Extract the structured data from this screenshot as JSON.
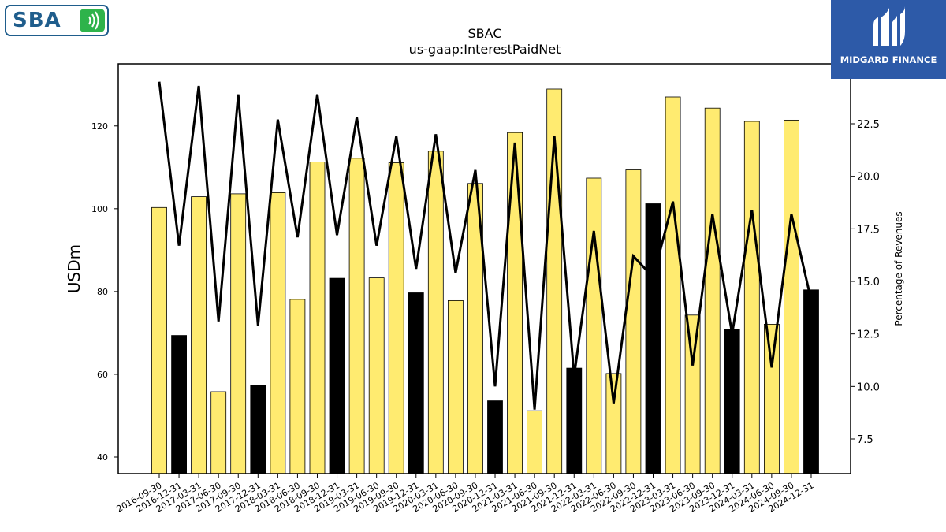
{
  "logos": {
    "left_text": "SBA",
    "right_text": "MIDGARD FINANCE"
  },
  "colors": {
    "bar_yellow": "#ffeb70",
    "bar_black": "#000000",
    "line": "#000000",
    "brand_blue": "#2d5aa8",
    "sba_blue": "#1f5d8c",
    "sba_green": "#2eb34b"
  },
  "chart_data": {
    "type": "bar",
    "title": "SBAC",
    "subtitle": "us-gaap:InterestPaidNet",
    "ylabel": "USDm",
    "y2label": "Percentage of Revenues",
    "ylim": [
      36,
      135
    ],
    "y2lim": [
      5.85,
      25.35
    ],
    "yticks": [
      40,
      60,
      80,
      100,
      120
    ],
    "y2ticks": [
      7.5,
      10.0,
      12.5,
      15.0,
      17.5,
      20.0,
      22.5
    ],
    "categories": [
      "2016-09-30",
      "2016-12-31",
      "2017-03-31",
      "2017-06-30",
      "2017-09-30",
      "2017-12-31",
      "2018-03-31",
      "2018-06-30",
      "2018-09-30",
      "2018-12-31",
      "2019-03-31",
      "2019-06-30",
      "2019-09-30",
      "2019-12-31",
      "2020-03-31",
      "2020-06-30",
      "2020-09-30",
      "2020-12-31",
      "2021-03-31",
      "2021-06-30",
      "2021-09-30",
      "2021-12-31",
      "2022-03-31",
      "2022-06-30",
      "2022-09-30",
      "2022-12-31",
      "2023-03-31",
      "2023-06-30",
      "2023-09-30",
      "2023-12-31",
      "2024-03-31",
      "2024-06-30",
      "2024-09-30",
      "2024-12-31"
    ],
    "series": [
      {
        "kind": "bar",
        "values": [
          100.3,
          69.4,
          102.9,
          55.8,
          103.6,
          57.3,
          103.9,
          78.1,
          111.3,
          83.2,
          112.2,
          83.3,
          111.1,
          79.7,
          113.9,
          77.8,
          106.1,
          53.6,
          118.4,
          51.2,
          128.9,
          61.5,
          107.4,
          60.2,
          109.4,
          101.2,
          127.0,
          74.3,
          124.3,
          70.8,
          121.1,
          72.1,
          121.4,
          80.4
        ],
        "colors": [
          "#ffeb70",
          "#000000",
          "#ffeb70",
          "#ffeb70",
          "#ffeb70",
          "#000000",
          "#ffeb70",
          "#ffeb70",
          "#ffeb70",
          "#000000",
          "#ffeb70",
          "#ffeb70",
          "#ffeb70",
          "#000000",
          "#ffeb70",
          "#ffeb70",
          "#ffeb70",
          "#000000",
          "#ffeb70",
          "#ffeb70",
          "#ffeb70",
          "#000000",
          "#ffeb70",
          "#ffeb70",
          "#ffeb70",
          "#000000",
          "#ffeb70",
          "#ffeb70",
          "#ffeb70",
          "#000000",
          "#ffeb70",
          "#ffeb70",
          "#ffeb70",
          "#000000"
        ]
      },
      {
        "kind": "line",
        "axis": "right",
        "values": [
          24.5,
          16.7,
          24.3,
          13.1,
          23.9,
          12.9,
          22.7,
          17.1,
          23.9,
          17.2,
          22.8,
          16.7,
          21.9,
          15.6,
          22.0,
          15.4,
          20.3,
          10.0,
          21.6,
          8.9,
          21.9,
          10.5,
          17.4,
          9.2,
          16.2,
          15.2,
          18.8,
          11.0,
          18.2,
          12.5,
          18.4,
          10.9,
          18.2,
          14.1
        ]
      }
    ],
    "grid": false,
    "legend": "none"
  }
}
